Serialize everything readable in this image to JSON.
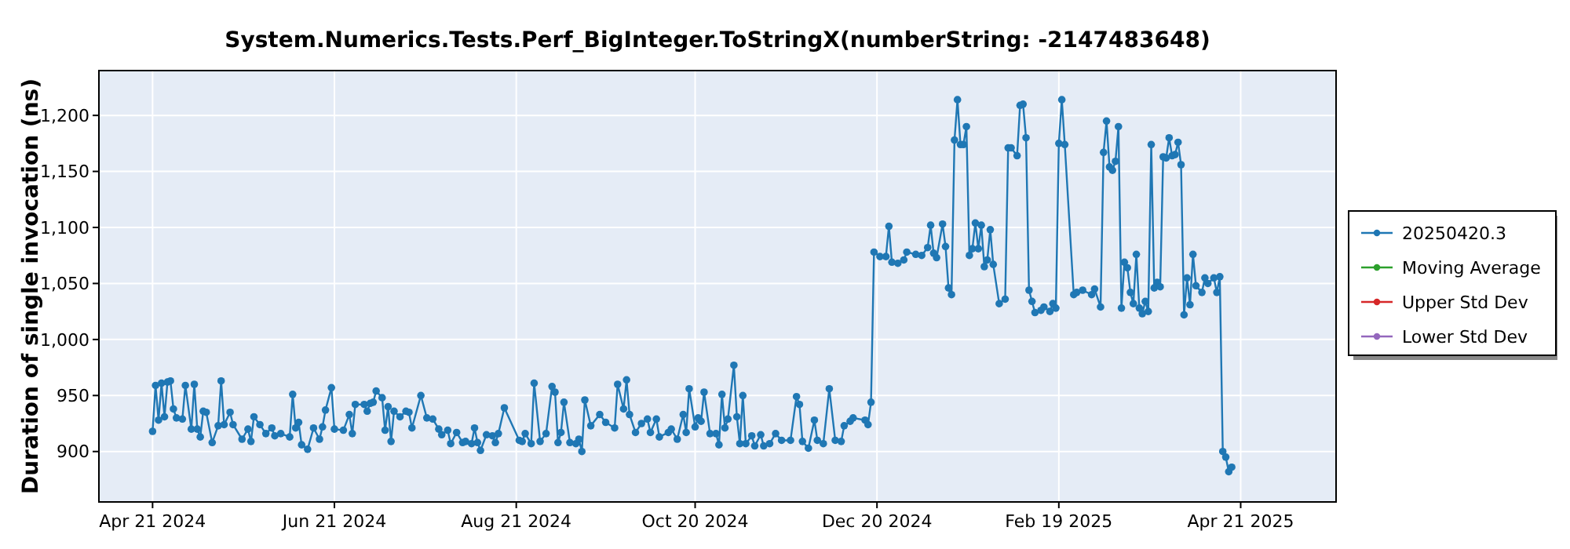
{
  "chart_data": {
    "type": "line",
    "title": "System.Numerics.Tests.Perf_BigInteger.ToStringX(numberString: -2147483648)",
    "ylabel": "Duration of single invocation (ns)",
    "xlim": [
      "2024-04-03",
      "2025-05-23"
    ],
    "xticks": [
      {
        "value": "2024-04-21",
        "label": "Apr 21 2024"
      },
      {
        "value": "2024-06-21",
        "label": "Jun 21 2024"
      },
      {
        "value": "2024-08-21",
        "label": "Aug 21 2024"
      },
      {
        "value": "2024-10-20",
        "label": "Oct 20 2024"
      },
      {
        "value": "2024-12-20",
        "label": "Dec 20 2024"
      },
      {
        "value": "2025-02-19",
        "label": "Feb 19 2025"
      },
      {
        "value": "2025-04-21",
        "label": "Apr 21 2025"
      }
    ],
    "ylim": [
      855,
      1240
    ],
    "yticks": [
      900,
      950,
      {
        "value": 1000,
        "label": "1,000"
      },
      {
        "value": 1050,
        "label": "1,050"
      },
      {
        "value": 1100,
        "label": "1,100"
      },
      {
        "value": 1150,
        "label": "1,150"
      },
      {
        "value": 1200,
        "label": "1,200"
      }
    ],
    "grid": true,
    "legend": "right",
    "marker": "circle",
    "line_style": "solid",
    "series": [
      {
        "name": "20250420.3",
        "color": "#1f77b4",
        "x": [
          "2024-04-21",
          "2024-04-22",
          "2024-04-23",
          "2024-04-24",
          "2024-04-25",
          "2024-04-26",
          "2024-04-27",
          "2024-04-28",
          "2024-04-29",
          "2024-05-01",
          "2024-05-02",
          "2024-05-04",
          "2024-05-05",
          "2024-05-06",
          "2024-05-07",
          "2024-05-08",
          "2024-05-09",
          "2024-05-11",
          "2024-05-13",
          "2024-05-14",
          "2024-05-15",
          "2024-05-17",
          "2024-05-18",
          "2024-05-21",
          "2024-05-23",
          "2024-05-24",
          "2024-05-25",
          "2024-05-27",
          "2024-05-29",
          "2024-05-31",
          "2024-06-01",
          "2024-06-03",
          "2024-06-06",
          "2024-06-07",
          "2024-06-08",
          "2024-06-09",
          "2024-06-10",
          "2024-06-12",
          "2024-06-14",
          "2024-06-16",
          "2024-06-17",
          "2024-06-18",
          "2024-06-20",
          "2024-06-21",
          "2024-06-24",
          "2024-06-26",
          "2024-06-27",
          "2024-06-28",
          "2024-07-01",
          "2024-07-02",
          "2024-07-03",
          "2024-07-04",
          "2024-07-05",
          "2024-07-07",
          "2024-07-08",
          "2024-07-09",
          "2024-07-10",
          "2024-07-11",
          "2024-07-13",
          "2024-07-15",
          "2024-07-16",
          "2024-07-17",
          "2024-07-20",
          "2024-07-22",
          "2024-07-24",
          "2024-07-26",
          "2024-07-27",
          "2024-07-29",
          "2024-07-30",
          "2024-08-01",
          "2024-08-03",
          "2024-08-04",
          "2024-08-06",
          "2024-08-07",
          "2024-08-08",
          "2024-08-09",
          "2024-08-11",
          "2024-08-13",
          "2024-08-14",
          "2024-08-15",
          "2024-08-17",
          "2024-08-22",
          "2024-08-23",
          "2024-08-24",
          "2024-08-26",
          "2024-08-27",
          "2024-08-29",
          "2024-08-31",
          "2024-09-02",
          "2024-09-03",
          "2024-09-04",
          "2024-09-05",
          "2024-09-06",
          "2024-09-08",
          "2024-09-10",
          "2024-09-11",
          "2024-09-12",
          "2024-09-13",
          "2024-09-15",
          "2024-09-18",
          "2024-09-20",
          "2024-09-23",
          "2024-09-24",
          "2024-09-26",
          "2024-09-27",
          "2024-09-28",
          "2024-09-30",
          "2024-10-02",
          "2024-10-04",
          "2024-10-05",
          "2024-10-07",
          "2024-10-08",
          "2024-10-11",
          "2024-10-12",
          "2024-10-14",
          "2024-10-16",
          "2024-10-17",
          "2024-10-18",
          "2024-10-20",
          "2024-10-21",
          "2024-10-22",
          "2024-10-23",
          "2024-10-25",
          "2024-10-27",
          "2024-10-28",
          "2024-10-29",
          "2024-10-30",
          "2024-10-31",
          "2024-11-02",
          "2024-11-03",
          "2024-11-04",
          "2024-11-05",
          "2024-11-06",
          "2024-11-08",
          "2024-11-09",
          "2024-11-11",
          "2024-11-12",
          "2024-11-14",
          "2024-11-16",
          "2024-11-18",
          "2024-11-21",
          "2024-11-23",
          "2024-11-24",
          "2024-11-25",
          "2024-11-27",
          "2024-11-29",
          "2024-11-30",
          "2024-12-02",
          "2024-12-04",
          "2024-12-06",
          "2024-12-08",
          "2024-12-09",
          "2024-12-11",
          "2024-12-12",
          "2024-12-16",
          "2024-12-17",
          "2024-12-18",
          "2024-12-19",
          "2024-12-21",
          "2024-12-23",
          "2024-12-24",
          "2024-12-25",
          "2024-12-27",
          "2024-12-29",
          "2024-12-30",
          "2025-01-02",
          "2025-01-04",
          "2025-01-06",
          "2025-01-07",
          "2025-01-08",
          "2025-01-09",
          "2025-01-11",
          "2025-01-12",
          "2025-01-13",
          "2025-01-14",
          "2025-01-15",
          "2025-01-16",
          "2025-01-17",
          "2025-01-18",
          "2025-01-19",
          "2025-01-20",
          "2025-01-21",
          "2025-01-22",
          "2025-01-23",
          "2025-01-24",
          "2025-01-25",
          "2025-01-26",
          "2025-01-27",
          "2025-01-28",
          "2025-01-30",
          "2025-02-01",
          "2025-02-02",
          "2025-02-03",
          "2025-02-05",
          "2025-02-06",
          "2025-02-07",
          "2025-02-08",
          "2025-02-09",
          "2025-02-10",
          "2025-02-11",
          "2025-02-13",
          "2025-02-14",
          "2025-02-16",
          "2025-02-17",
          "2025-02-18",
          "2025-02-19",
          "2025-02-20",
          "2025-02-21",
          "2025-02-24",
          "2025-02-25",
          "2025-02-27",
          "2025-03-02",
          "2025-03-03",
          "2025-03-05",
          "2025-03-06",
          "2025-03-07",
          "2025-03-08",
          "2025-03-09",
          "2025-03-10",
          "2025-03-11",
          "2025-03-12",
          "2025-03-13",
          "2025-03-14",
          "2025-03-15",
          "2025-03-16",
          "2025-03-17",
          "2025-03-18",
          "2025-03-19",
          "2025-03-20",
          "2025-03-21",
          "2025-03-22",
          "2025-03-23",
          "2025-03-24",
          "2025-03-25",
          "2025-03-26",
          "2025-03-27",
          "2025-03-28",
          "2025-03-29",
          "2025-03-30",
          "2025-03-31",
          "2025-04-01",
          "2025-04-02",
          "2025-04-03",
          "2025-04-04",
          "2025-04-05",
          "2025-04-06",
          "2025-04-08",
          "2025-04-09",
          "2025-04-10",
          "2025-04-12",
          "2025-04-13",
          "2025-04-14",
          "2025-04-15",
          "2025-04-16",
          "2025-04-17",
          "2025-04-18"
        ],
        "values": [
          918,
          959,
          928,
          961,
          931,
          962,
          963,
          938,
          930,
          929,
          959,
          920,
          960,
          920,
          913,
          936,
          935,
          908,
          923,
          963,
          924,
          935,
          924,
          911,
          920,
          909,
          931,
          924,
          916,
          921,
          914,
          916,
          913,
          951,
          921,
          926,
          906,
          902,
          921,
          911,
          922,
          937,
          957,
          920,
          919,
          933,
          916,
          942,
          942,
          936,
          943,
          944,
          954,
          948,
          919,
          940,
          909,
          936,
          931,
          936,
          935,
          921,
          950,
          930,
          929,
          920,
          915,
          919,
          907,
          917,
          908,
          909,
          907,
          921,
          908,
          901,
          915,
          914,
          908,
          916,
          939,
          910,
          909,
          916,
          907,
          961,
          909,
          916,
          958,
          953,
          908,
          917,
          944,
          908,
          907,
          911,
          900,
          946,
          923,
          933,
          926,
          921,
          960,
          938,
          964,
          933,
          917,
          925,
          929,
          917,
          929,
          913,
          917,
          920,
          911,
          933,
          917,
          956,
          922,
          930,
          927,
          953,
          916,
          916,
          906,
          951,
          921,
          929,
          977,
          931,
          907,
          950,
          907,
          914,
          905,
          915,
          905,
          907,
          916,
          910,
          910,
          949,
          942,
          909,
          903,
          928,
          910,
          907,
          956,
          910,
          909,
          923,
          927,
          930,
          928,
          924,
          944,
          1078,
          1074,
          1074,
          1101,
          1069,
          1068,
          1071,
          1078,
          1076,
          1075,
          1082,
          1102,
          1077,
          1073,
          1103,
          1083,
          1046,
          1040,
          1178,
          1214,
          1174,
          1174,
          1190,
          1075,
          1081,
          1104,
          1081,
          1102,
          1065,
          1071,
          1098,
          1067,
          1032,
          1036,
          1171,
          1171,
          1164,
          1209,
          1210,
          1180,
          1044,
          1034,
          1024,
          1026,
          1029,
          1025,
          1032,
          1028,
          1175,
          1214,
          1174,
          1040,
          1042,
          1044,
          1040,
          1045,
          1029,
          1167,
          1195,
          1154,
          1151,
          1159,
          1190,
          1028,
          1069,
          1064,
          1042,
          1032,
          1076,
          1028,
          1023,
          1034,
          1025,
          1174,
          1046,
          1051,
          1047,
          1163,
          1162,
          1180,
          1164,
          1165,
          1176,
          1156,
          1022,
          1055,
          1031,
          1076,
          1048,
          1042,
          1055,
          1050,
          1055,
          1042,
          1056,
          900,
          895,
          882,
          886
        ]
      },
      {
        "name": "Moving Average",
        "color": "#2ca02c"
      },
      {
        "name": "Upper Std Dev",
        "color": "#d62728"
      },
      {
        "name": "Lower Std Dev",
        "color": "#9467bd"
      }
    ]
  }
}
